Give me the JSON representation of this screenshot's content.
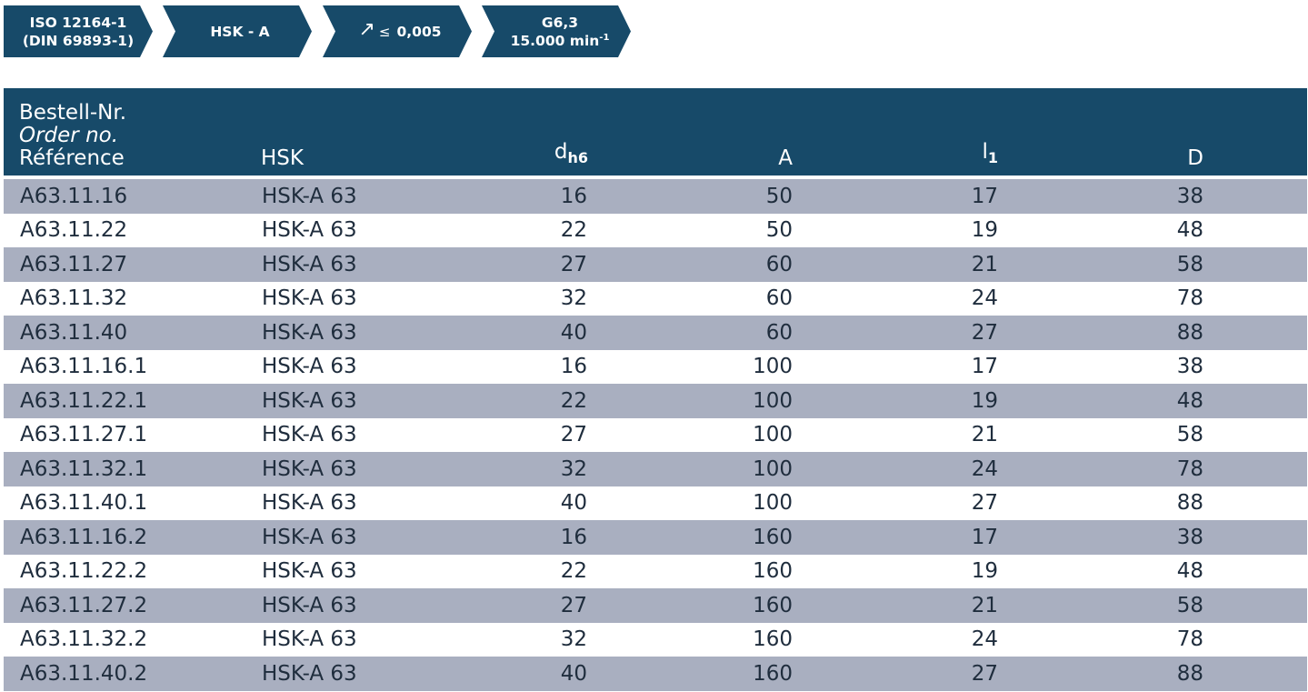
{
  "badges": {
    "norm_line1": "ISO 12164-1",
    "norm_line2": "(DIN 69893-1)",
    "type": "HSK - A",
    "runout_icon": "runout-arrow-icon",
    "runout_symbol": "↗",
    "runout_le": "≤",
    "runout_value": "0,005",
    "balance_line1": "G6,3",
    "balance_line2_prefix": "15.000 min",
    "balance_line2_sup": "-1"
  },
  "colors": {
    "header_bg": "#174a69",
    "row_alt_bg": "#a9afc0",
    "row_bg": "#ffffff"
  },
  "table": {
    "headers": {
      "order_de": "Bestell-Nr.",
      "order_en": "Order no.",
      "order_fr": "Référence",
      "hsk": "HSK",
      "dh6_main": "d",
      "dh6_sub": "h6",
      "a": "A",
      "l1_main": "l",
      "l1_sub": "1",
      "d": "D"
    },
    "rows": [
      {
        "order": "A63.11.16",
        "hsk": "HSK-A 63",
        "dh6": "16",
        "a": "50",
        "l1": "17",
        "d": "38"
      },
      {
        "order": "A63.11.22",
        "hsk": "HSK-A 63",
        "dh6": "22",
        "a": "50",
        "l1": "19",
        "d": "48"
      },
      {
        "order": "A63.11.27",
        "hsk": "HSK-A 63",
        "dh6": "27",
        "a": "60",
        "l1": "21",
        "d": "58"
      },
      {
        "order": "A63.11.32",
        "hsk": "HSK-A 63",
        "dh6": "32",
        "a": "60",
        "l1": "24",
        "d": "78"
      },
      {
        "order": "A63.11.40",
        "hsk": "HSK-A 63",
        "dh6": "40",
        "a": "60",
        "l1": "27",
        "d": "88"
      },
      {
        "order": "A63.11.16.1",
        "hsk": "HSK-A 63",
        "dh6": "16",
        "a": "100",
        "l1": "17",
        "d": "38"
      },
      {
        "order": "A63.11.22.1",
        "hsk": "HSK-A 63",
        "dh6": "22",
        "a": "100",
        "l1": "19",
        "d": "48"
      },
      {
        "order": "A63.11.27.1",
        "hsk": "HSK-A 63",
        "dh6": "27",
        "a": "100",
        "l1": "21",
        "d": "58"
      },
      {
        "order": "A63.11.32.1",
        "hsk": "HSK-A 63",
        "dh6": "32",
        "a": "100",
        "l1": "24",
        "d": "78"
      },
      {
        "order": "A63.11.40.1",
        "hsk": "HSK-A 63",
        "dh6": "40",
        "a": "100",
        "l1": "27",
        "d": "88"
      },
      {
        "order": "A63.11.16.2",
        "hsk": "HSK-A 63",
        "dh6": "16",
        "a": "160",
        "l1": "17",
        "d": "38"
      },
      {
        "order": "A63.11.22.2",
        "hsk": "HSK-A 63",
        "dh6": "22",
        "a": "160",
        "l1": "19",
        "d": "48"
      },
      {
        "order": "A63.11.27.2",
        "hsk": "HSK-A 63",
        "dh6": "27",
        "a": "160",
        "l1": "21",
        "d": "58"
      },
      {
        "order": "A63.11.32.2",
        "hsk": "HSK-A 63",
        "dh6": "32",
        "a": "160",
        "l1": "24",
        "d": "78"
      },
      {
        "order": "A63.11.40.2",
        "hsk": "HSK-A 63",
        "dh6": "40",
        "a": "160",
        "l1": "27",
        "d": "88"
      }
    ]
  }
}
